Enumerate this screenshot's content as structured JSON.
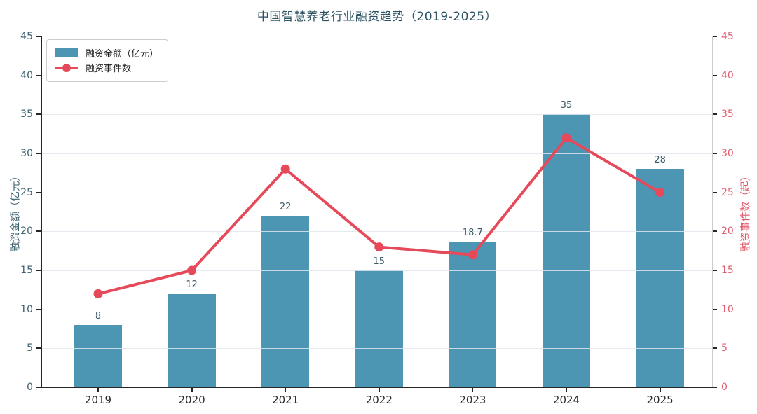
{
  "title": "中国智慧养老行业融资趋势（2019-2025）",
  "colors": {
    "bar": "#4d96b3",
    "line": "#e5495a",
    "left_axis_text": "#3b5f6e",
    "right_axis_text": "#e25b6c",
    "spine": "#262626",
    "grid": "#e2e8ee",
    "value_label": "#3d5a68",
    "x_label": "#2b2b2b",
    "title_text": "#2d5363"
  },
  "chart_data": {
    "type": "combo",
    "title": "中国智慧养老行业融资趋势（2019-2025）",
    "categories": [
      "2019",
      "2020",
      "2021",
      "2022",
      "2023",
      "2024",
      "2025"
    ],
    "series": [
      {
        "name": "融资金额（亿元）",
        "type": "bar",
        "axis": "left",
        "color": "#4d96b3",
        "values": [
          8,
          12,
          22,
          15,
          18.7,
          35,
          28
        ],
        "value_labels": [
          "8",
          "12",
          "22",
          "15",
          "18.7",
          "35",
          "28"
        ]
      },
      {
        "name": "融资事件数",
        "type": "line",
        "axis": "right",
        "color": "#e5495a",
        "values": [
          12,
          15,
          28,
          18,
          17,
          32,
          25
        ]
      }
    ],
    "ylabel_left": "融资金额（亿元）",
    "ylabel_right": "融资事件数（起）",
    "ylim_left": [
      0,
      45
    ],
    "ylim_right": [
      0,
      45
    ],
    "yticks": [
      0,
      5,
      10,
      15,
      20,
      25,
      30,
      35,
      40,
      45
    ],
    "grid": true,
    "legend_position": "upper-left"
  }
}
